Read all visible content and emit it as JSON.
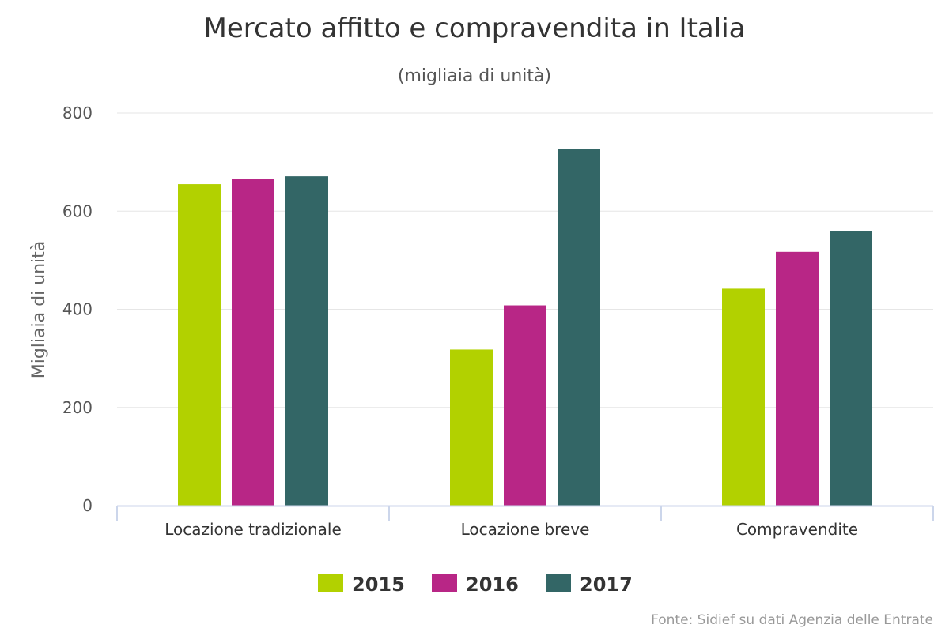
{
  "chart_data": {
    "type": "bar",
    "title": "Mercato affitto e compravendita in Italia",
    "subtitle": "(migliaia di unità)",
    "ylabel": "Migliaia di unità",
    "xlabel": "",
    "ylim": [
      0,
      800
    ],
    "yticks": [
      0,
      200,
      400,
      600,
      800
    ],
    "categories": [
      "Locazione tradizionale",
      "Locazione breve",
      "Compravendite"
    ],
    "series": [
      {
        "name": "2015",
        "color": "#b2d100",
        "values": [
          655,
          318,
          442
        ]
      },
      {
        "name": "2016",
        "color": "#b82686",
        "values": [
          665,
          408,
          517
        ]
      },
      {
        "name": "2017",
        "color": "#336666",
        "values": [
          671,
          726,
          559
        ]
      }
    ],
    "legend": "bottom-center",
    "grid": true,
    "credit": "Fonte: Sidief su dati Agenzia delle Entrate"
  }
}
